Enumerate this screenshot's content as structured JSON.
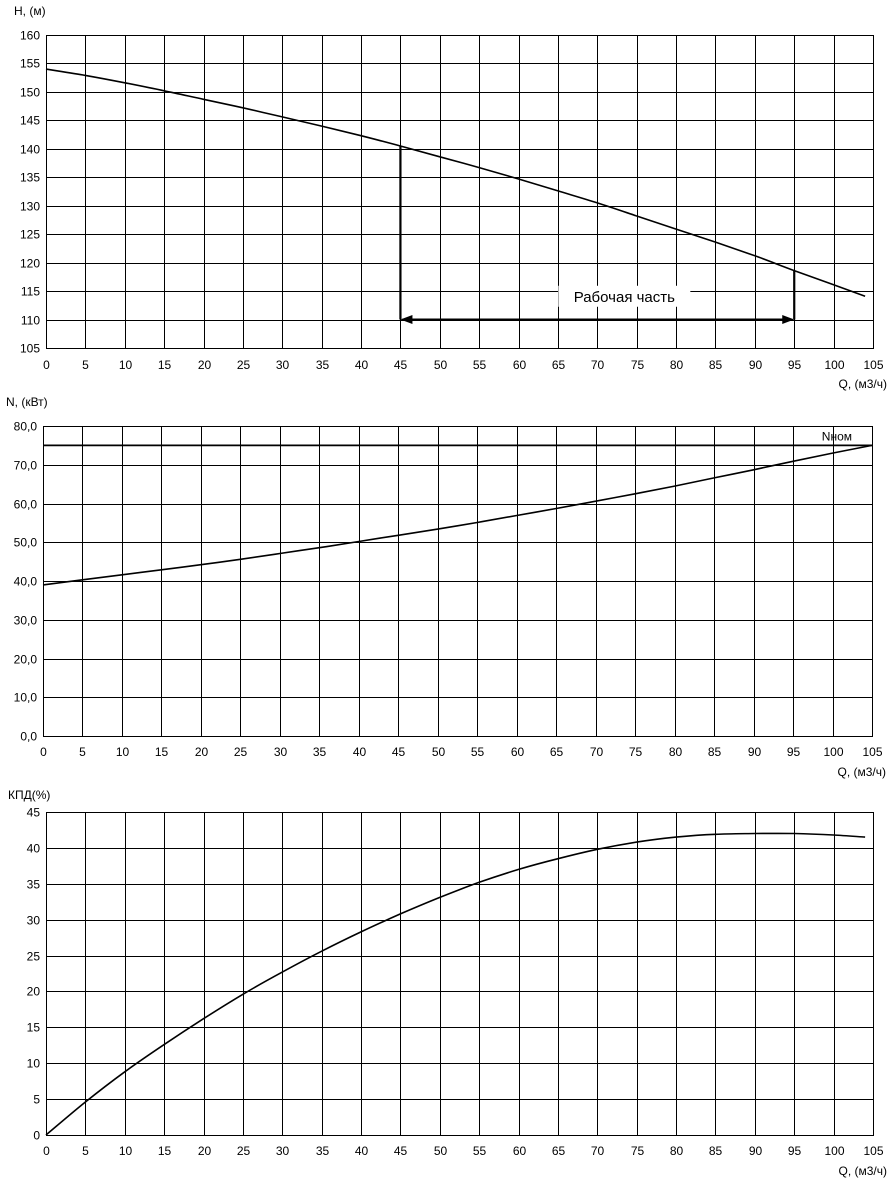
{
  "chart_data": [
    {
      "type": "line",
      "ylabel": "H, (м)",
      "xlabel": "Q, (м3/ч)",
      "xlim": [
        0,
        105
      ],
      "ylim": [
        105,
        160
      ],
      "x_ticks": [
        "0",
        "5",
        "10",
        "15",
        "20",
        "25",
        "30",
        "35",
        "40",
        "45",
        "50",
        "55",
        "60",
        "65",
        "70",
        "75",
        "80",
        "85",
        "90",
        "95",
        "100",
        "105"
      ],
      "y_ticks": [
        "105",
        "110",
        "115",
        "120",
        "125",
        "130",
        "135",
        "140",
        "145",
        "150",
        "155",
        "160"
      ],
      "grid": true,
      "series": [
        {
          "x": [
            0,
            5,
            10,
            15,
            20,
            25,
            30,
            35,
            40,
            45,
            50,
            55,
            60,
            65,
            70,
            75,
            80,
            85,
            90,
            95,
            100,
            104
          ],
          "y": [
            154,
            152.9,
            151.6,
            150.2,
            148.7,
            147.2,
            145.6,
            144.0,
            142.3,
            140.5,
            138.6,
            136.7,
            134.7,
            132.6,
            130.5,
            128.2,
            125.9,
            123.6,
            121.2,
            118.6,
            116.1,
            114.1
          ]
        }
      ],
      "working_range": {
        "label": "Рабочая часть",
        "q_start": 45,
        "q_end": 95,
        "h_start": 140.5,
        "h_end": 118.6,
        "arrow_level": 110
      }
    },
    {
      "type": "line",
      "ylabel": "N, (кВт)",
      "xlabel": "Q, (м3/ч)",
      "xlim": [
        0,
        105
      ],
      "ylim": [
        0,
        80
      ],
      "x_ticks": [
        "0",
        "5",
        "10",
        "15",
        "20",
        "25",
        "30",
        "35",
        "40",
        "45",
        "50",
        "55",
        "60",
        "65",
        "70",
        "75",
        "80",
        "85",
        "90",
        "95",
        "100",
        "105"
      ],
      "y_ticks": [
        "0,0",
        "10,0",
        "20,0",
        "30,0",
        "40,0",
        "50,0",
        "60,0",
        "70,0",
        "80,0"
      ],
      "grid": true,
      "series": [
        {
          "x": [
            0,
            5,
            10,
            15,
            20,
            25,
            30,
            35,
            40,
            45,
            50,
            55,
            60,
            65,
            70,
            75,
            80,
            85,
            90,
            95,
            100,
            105
          ],
          "y": [
            39.0,
            40.3,
            41.6,
            42.9,
            44.2,
            45.6,
            47.1,
            48.6,
            50.2,
            51.8,
            53.4,
            55.1,
            56.9,
            58.7,
            60.6,
            62.5,
            64.5,
            66.6,
            68.7,
            70.9,
            73.0,
            75.0
          ]
        }
      ],
      "nominal_line": {
        "label": "Nном",
        "value": 75
      }
    },
    {
      "type": "line",
      "ylabel": "КПД(%)",
      "xlabel": "Q, (м3/ч)",
      "xlim": [
        0,
        105
      ],
      "ylim": [
        0,
        45
      ],
      "x_ticks": [
        "0",
        "5",
        "10",
        "15",
        "20",
        "25",
        "30",
        "35",
        "40",
        "45",
        "50",
        "55",
        "60",
        "65",
        "70",
        "75",
        "80",
        "85",
        "90",
        "95",
        "100",
        "105"
      ],
      "y_ticks": [
        "0",
        "5",
        "10",
        "15",
        "20",
        "25",
        "30",
        "35",
        "40",
        "45"
      ],
      "grid": true,
      "series": [
        {
          "x": [
            0,
            5,
            10,
            15,
            20,
            25,
            30,
            35,
            40,
            45,
            50,
            55,
            60,
            65,
            70,
            75,
            80,
            85,
            90,
            95,
            100,
            104
          ],
          "y": [
            0,
            4.6,
            8.8,
            12.6,
            16.2,
            19.6,
            22.7,
            25.6,
            28.3,
            30.8,
            33.1,
            35.2,
            37.0,
            38.5,
            39.8,
            40.8,
            41.5,
            41.9,
            42.0,
            42.0,
            41.8,
            41.5
          ]
        }
      ]
    }
  ]
}
